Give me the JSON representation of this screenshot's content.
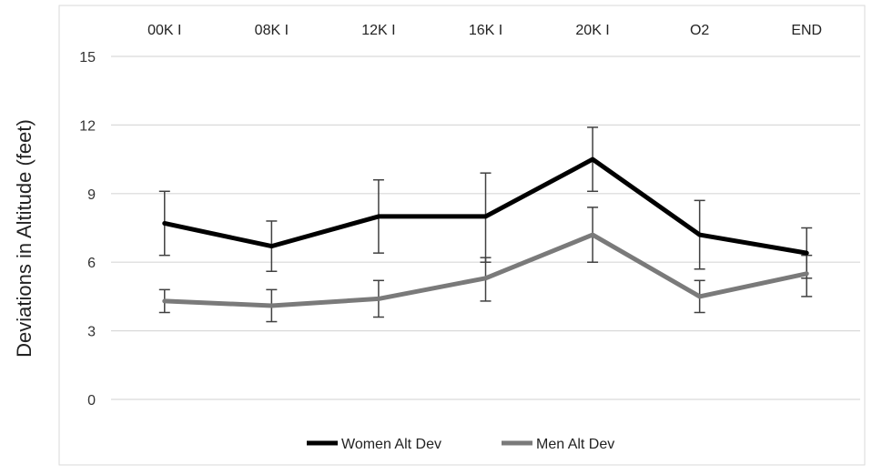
{
  "chart_data": {
    "type": "line",
    "title": "",
    "xlabel": "",
    "ylabel": "Deviations in Altitude (feet)",
    "categories": [
      "00K I",
      "08K I",
      "12K I",
      "16K I",
      "20K I",
      "O2",
      "END"
    ],
    "x_axis_position": "top",
    "ylim": [
      0,
      15
    ],
    "yticks": [
      "0",
      "3",
      "6",
      "9",
      "12",
      "15"
    ],
    "grid": true,
    "legend_position": "bottom",
    "series": [
      {
        "name": "Women Alt Dev",
        "color": "#000000",
        "values": [
          7.7,
          6.7,
          8.0,
          8.0,
          10.5,
          7.2,
          6.4
        ],
        "error_low": [
          6.3,
          5.6,
          6.4,
          6.0,
          9.1,
          5.7,
          5.3
        ],
        "error_high": [
          9.1,
          7.8,
          9.6,
          9.9,
          11.9,
          8.7,
          7.5
        ]
      },
      {
        "name": "Men Alt Dev",
        "color": "#7a7a7a",
        "values": [
          4.3,
          4.1,
          4.4,
          5.3,
          7.2,
          4.5,
          5.5
        ],
        "error_low": [
          3.8,
          3.4,
          3.6,
          4.3,
          6.0,
          3.8,
          4.5
        ],
        "error_high": [
          4.8,
          4.8,
          5.2,
          6.2,
          8.4,
          5.2,
          6.3
        ]
      }
    ]
  }
}
